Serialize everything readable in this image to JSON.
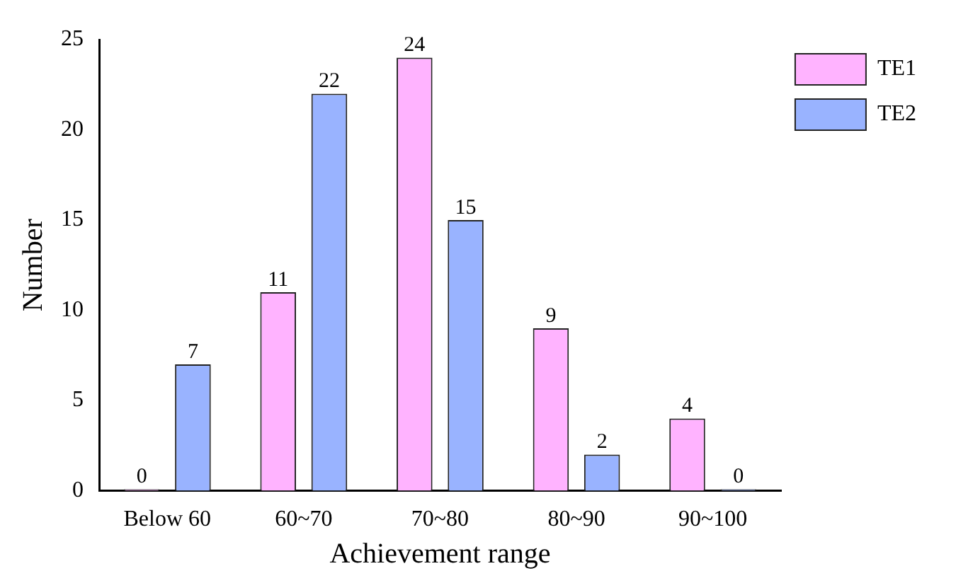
{
  "chart_data": {
    "type": "bar",
    "xlabel": "Achievement range",
    "ylabel": "Number",
    "categories": [
      "Below 60",
      "60~70",
      "70~80",
      "80~90",
      "90~100"
    ],
    "series": [
      {
        "name": "TE1",
        "color": "#ffb3ff",
        "values": [
          0,
          11,
          24,
          9,
          4
        ]
      },
      {
        "name": "TE2",
        "color": "#99b3ff",
        "values": [
          7,
          22,
          15,
          2,
          0
        ]
      }
    ],
    "ylim": [
      0,
      25
    ],
    "yticks": [
      0,
      5,
      10,
      15,
      20,
      25
    ],
    "data_labels": true,
    "legend": "top right",
    "grid": false
  }
}
